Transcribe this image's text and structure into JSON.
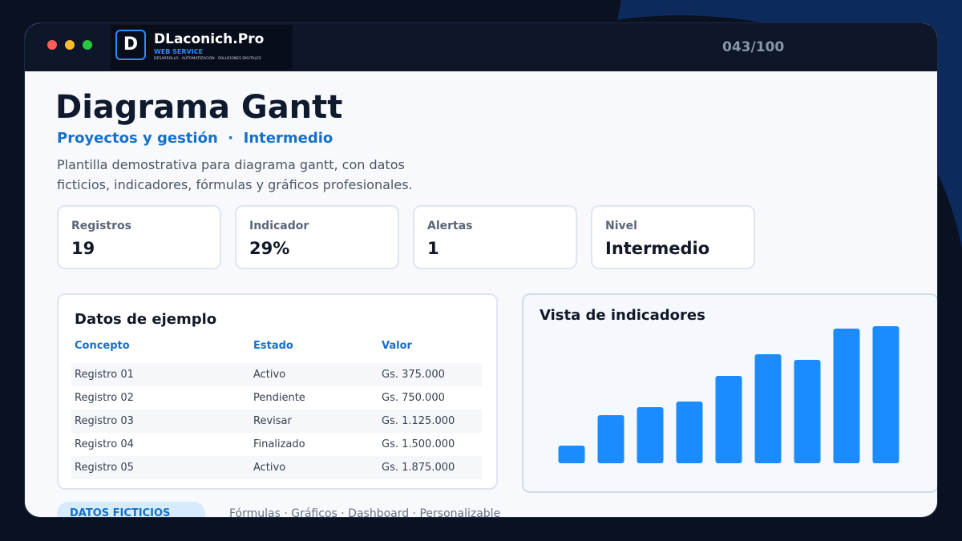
{
  "header": {
    "brand": "DLaconich.Pro",
    "brand_tag": "WEB SERVICE",
    "brand_sub": "DESARROLLO · AUTOMATIZACIÓN · SOLUCIONES DIGITALES",
    "counter": "043/100"
  },
  "hero": {
    "title": "Diagrama Gantt",
    "subtitle": "Proyectos y gestión  ·  Intermedio",
    "description": "Plantilla demostrativa para diagrama gantt, con datos ficticios, indicadores, fórmulas y gráficos profesionales."
  },
  "kpis": [
    {
      "label": "Registros",
      "value": "19"
    },
    {
      "label": "Indicador",
      "value": "29%"
    },
    {
      "label": "Alertas",
      "value": "1"
    },
    {
      "label": "Nivel",
      "value": "Intermedio"
    }
  ],
  "table": {
    "title": "Datos de ejemplo",
    "columns": [
      "Concepto",
      "Estado",
      "Valor"
    ],
    "rows": [
      [
        "Registro 01",
        "Activo",
        "Gs. 375.000"
      ],
      [
        "Registro 02",
        "Pendiente",
        "Gs. 750.000"
      ],
      [
        "Registro 03",
        "Revisar",
        "Gs. 1.125.000"
      ],
      [
        "Registro 04",
        "Finalizado",
        "Gs. 1.500.000"
      ],
      [
        "Registro 05",
        "Activo",
        "Gs. 1.875.000"
      ]
    ]
  },
  "chart_panel": {
    "chart_data": {
      "type": "bar",
      "title": "Vista de indicadores",
      "values": [
        22,
        60,
        70,
        77,
        109,
        136,
        129,
        168,
        171
      ],
      "color": "#1a8cff",
      "ylim": [
        0,
        180
      ]
    }
  },
  "footer": {
    "badge": "DATOS FICTICIOS",
    "tags": "Fórmulas · Gráficos · Dashboard · Personalizable"
  }
}
